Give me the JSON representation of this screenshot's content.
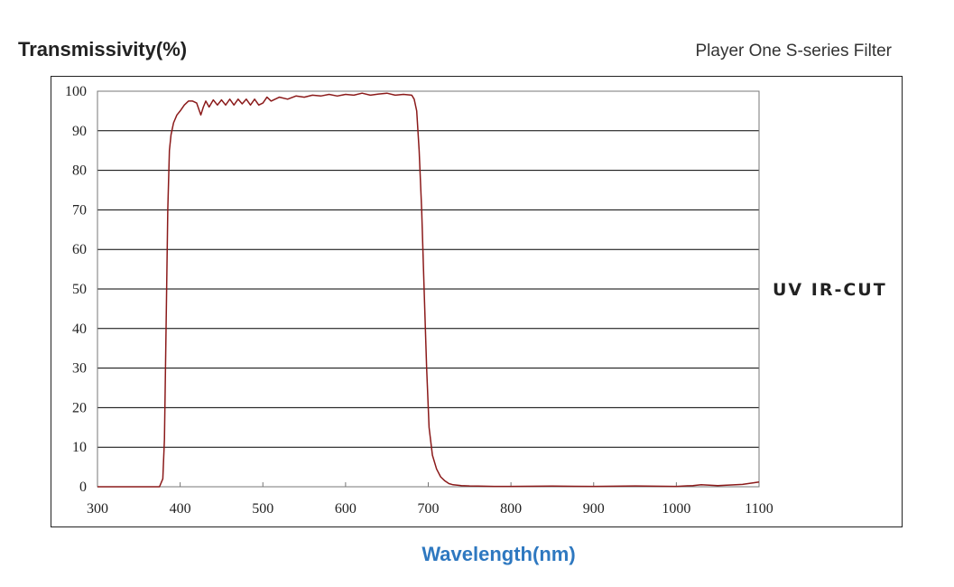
{
  "chart_data": {
    "type": "line",
    "title": "Player One S-series Filter",
    "ylabel": "Transmissivity(%)",
    "xlabel": "Wavelength(nm)",
    "xlim": [
      300,
      1100
    ],
    "ylim": [
      0,
      100
    ],
    "x_ticks": [
      300,
      400,
      500,
      600,
      700,
      800,
      900,
      1000,
      1100
    ],
    "y_ticks": [
      0,
      10,
      20,
      30,
      40,
      50,
      60,
      70,
      80,
      90,
      100
    ],
    "grid": true,
    "series": [
      {
        "name": "UV IR-CUT",
        "color": "#8b1a1a",
        "x": [
          300,
          350,
          375,
          379,
          381,
          383,
          385,
          387,
          389,
          392,
          396,
          400,
          405,
          410,
          415,
          420,
          425,
          428,
          431,
          435,
          440,
          445,
          450,
          455,
          460,
          465,
          470,
          475,
          480,
          485,
          490,
          495,
          500,
          505,
          510,
          520,
          530,
          540,
          550,
          560,
          570,
          580,
          590,
          600,
          610,
          620,
          630,
          640,
          650,
          660,
          670,
          680,
          683,
          686,
          689,
          692,
          695,
          698,
          701,
          705,
          710,
          715,
          720,
          725,
          730,
          740,
          750,
          760,
          780,
          800,
          850,
          900,
          950,
          1000,
          1020,
          1030,
          1050,
          1080,
          1100
        ],
        "y": [
          0,
          0,
          0,
          2,
          12,
          40,
          70,
          85,
          89,
          92,
          94,
          95,
          96.5,
          97.5,
          97.5,
          97,
          94,
          96,
          97.5,
          96,
          97.8,
          96.5,
          97.8,
          96.5,
          98,
          96.5,
          98,
          96.8,
          98,
          96.5,
          98,
          96.5,
          97,
          98.5,
          97.5,
          98.5,
          98,
          98.8,
          98.5,
          99,
          98.8,
          99.2,
          98.8,
          99.2,
          99,
          99.5,
          99,
          99.3,
          99.5,
          99,
          99.2,
          99,
          98,
          95,
          85,
          70,
          50,
          30,
          15,
          8,
          4.5,
          2.5,
          1.5,
          0.8,
          0.5,
          0.3,
          0.2,
          0.15,
          0.1,
          0.1,
          0.15,
          0.1,
          0.2,
          0.1,
          0.3,
          0.5,
          0.3,
          0.6,
          1.2
        ]
      }
    ]
  }
}
